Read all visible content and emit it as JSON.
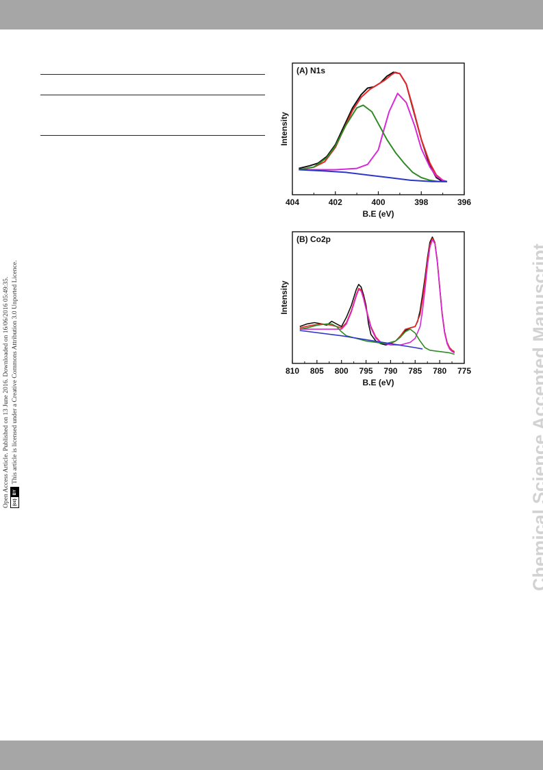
{
  "header": {},
  "footer": {},
  "side_meta": {
    "line1": "Open Access Article. Published on 13 June 2016. Downloaded on 16/06/2016 05:49:35.",
    "line2": "This article is licensed under a Creative Commons Attribution 3.0 Unported Licence.",
    "badge_cc": "(cc)",
    "badge_by": "BY"
  },
  "watermark": "Chemical Science Accepted Manuscript",
  "colors": {
    "band": "#a6a6a6",
    "experimental": "#111111",
    "fit": "#e8262a",
    "component_1": "#d827d8",
    "component_2": "#2e8b24",
    "background": "#2b36c8"
  },
  "chart_data": [
    {
      "type": "line",
      "title": "(A) N1s",
      "xlabel": "B.E (eV)",
      "ylabel": "Intensity",
      "xlim": [
        404,
        396
      ],
      "ylim": [
        0,
        1.0
      ],
      "x_reversed": true,
      "x_ticks": [
        404,
        402,
        400,
        398,
        396
      ],
      "x_tick_labels": [
        "404",
        "402",
        "400",
        "398",
        "396"
      ],
      "y_ticks_shown": false,
      "series": [
        {
          "role": "experimental",
          "color": "#111111",
          "x": [
            403.7,
            403.2,
            402.8,
            402.4,
            402.0,
            401.6,
            401.2,
            400.8,
            400.5,
            400.2,
            399.9,
            399.6,
            399.3,
            399.0,
            398.7,
            398.4,
            398.0,
            397.6,
            397.3,
            397.0,
            396.8
          ],
          "y": [
            0.2,
            0.22,
            0.24,
            0.29,
            0.38,
            0.52,
            0.66,
            0.76,
            0.81,
            0.82,
            0.85,
            0.9,
            0.93,
            0.92,
            0.84,
            0.66,
            0.42,
            0.22,
            0.13,
            0.1,
            0.1
          ]
        },
        {
          "role": "fit",
          "color": "#e8262a",
          "x": [
            403.7,
            403.0,
            402.5,
            402.0,
            401.6,
            401.2,
            400.8,
            400.4,
            400.0,
            399.7,
            399.4,
            399.2,
            399.0,
            398.7,
            398.4,
            398.0,
            397.6,
            397.3,
            397.0,
            396.8
          ],
          "y": [
            0.19,
            0.21,
            0.25,
            0.36,
            0.5,
            0.64,
            0.74,
            0.8,
            0.84,
            0.87,
            0.91,
            0.93,
            0.92,
            0.84,
            0.67,
            0.42,
            0.24,
            0.15,
            0.11,
            0.1
          ]
        },
        {
          "role": "component",
          "color": "#d827d8",
          "x": [
            403.7,
            402.0,
            401.0,
            400.5,
            400.0,
            399.8,
            399.5,
            399.1,
            398.7,
            398.3,
            398.0,
            397.6,
            397.3,
            397.0,
            396.8
          ],
          "y": [
            0.19,
            0.19,
            0.2,
            0.23,
            0.34,
            0.46,
            0.63,
            0.77,
            0.7,
            0.52,
            0.35,
            0.21,
            0.14,
            0.11,
            0.1
          ]
        },
        {
          "role": "component",
          "color": "#2e8b24",
          "x": [
            403.7,
            403.0,
            402.4,
            402.0,
            401.5,
            401.0,
            400.7,
            400.3,
            400.0,
            399.6,
            399.2,
            398.8,
            398.4,
            398.0,
            397.6,
            397.2,
            396.8
          ],
          "y": [
            0.19,
            0.21,
            0.28,
            0.37,
            0.53,
            0.66,
            0.68,
            0.63,
            0.54,
            0.42,
            0.32,
            0.24,
            0.17,
            0.13,
            0.11,
            0.1,
            0.1
          ]
        },
        {
          "role": "background",
          "color": "#2b36c8",
          "x": [
            403.7,
            402.5,
            401.5,
            400.5,
            399.5,
            398.5,
            397.5,
            396.8
          ],
          "y": [
            0.19,
            0.18,
            0.17,
            0.15,
            0.13,
            0.11,
            0.1,
            0.1
          ]
        }
      ]
    },
    {
      "type": "line",
      "title": "(B) Co2p",
      "xlabel": "B.E (eV)",
      "ylabel": "Intensity",
      "xlim": [
        810,
        775
      ],
      "ylim": [
        0,
        1.0
      ],
      "x_reversed": true,
      "x_ticks": [
        810,
        805,
        800,
        795,
        790,
        785,
        780,
        775
      ],
      "x_tick_labels": [
        "810",
        "805",
        "800",
        "795",
        "790",
        "785",
        "780",
        "775"
      ],
      "y_ticks_shown": false,
      "series": [
        {
          "role": "experimental",
          "color": "#111111",
          "x": [
            808.5,
            807,
            805.5,
            804,
            803,
            802,
            801,
            800,
            799,
            798,
            797,
            796.5,
            796,
            795.5,
            795,
            794.5,
            794,
            793,
            792,
            791,
            790,
            789,
            788,
            787,
            786,
            785,
            784.5,
            784,
            783.5,
            783,
            782.5,
            782,
            781.5,
            781,
            780.5,
            780,
            779.5,
            779,
            778.5,
            778,
            777.5,
            777
          ],
          "y": [
            0.28,
            0.3,
            0.31,
            0.3,
            0.29,
            0.32,
            0.3,
            0.28,
            0.35,
            0.44,
            0.56,
            0.6,
            0.58,
            0.52,
            0.44,
            0.3,
            0.22,
            0.17,
            0.15,
            0.14,
            0.15,
            0.17,
            0.2,
            0.25,
            0.27,
            0.28,
            0.32,
            0.4,
            0.52,
            0.65,
            0.8,
            0.92,
            0.96,
            0.92,
            0.78,
            0.58,
            0.38,
            0.24,
            0.16,
            0.12,
            0.1,
            0.08
          ]
        },
        {
          "role": "fit",
          "color": "#e8262a",
          "x": [
            808.5,
            806,
            804,
            802,
            800,
            799,
            798,
            797,
            796.5,
            796,
            795.5,
            795,
            794,
            793,
            792,
            791,
            790,
            789,
            788,
            787,
            786,
            785,
            784,
            783.5,
            783,
            782.5,
            782,
            781.5,
            781,
            780.5,
            780,
            779.5,
            779,
            778.5,
            778,
            777.5,
            777
          ],
          "y": [
            0.27,
            0.29,
            0.3,
            0.29,
            0.27,
            0.31,
            0.4,
            0.52,
            0.57,
            0.56,
            0.5,
            0.42,
            0.28,
            0.2,
            0.16,
            0.15,
            0.15,
            0.17,
            0.21,
            0.26,
            0.27,
            0.28,
            0.37,
            0.48,
            0.62,
            0.78,
            0.9,
            0.95,
            0.92,
            0.78,
            0.58,
            0.38,
            0.24,
            0.16,
            0.12,
            0.1,
            0.09
          ]
        },
        {
          "role": "component",
          "color": "#d827d8",
          "x": [
            808.5,
            800,
            799,
            798,
            797,
            796.5,
            796,
            795.5,
            795,
            794,
            793,
            792,
            791,
            790,
            789,
            788,
            787,
            786,
            785,
            784,
            783.5,
            783,
            782.5,
            782,
            781.5,
            781,
            780.5,
            780,
            779.5,
            779,
            778.5,
            778,
            777.5,
            777
          ],
          "y": [
            0.26,
            0.26,
            0.3,
            0.39,
            0.51,
            0.56,
            0.55,
            0.49,
            0.41,
            0.27,
            0.19,
            0.16,
            0.15,
            0.14,
            0.14,
            0.14,
            0.15,
            0.16,
            0.19,
            0.28,
            0.4,
            0.56,
            0.74,
            0.88,
            0.94,
            0.91,
            0.77,
            0.57,
            0.37,
            0.23,
            0.15,
            0.11,
            0.09,
            0.08
          ]
        },
        {
          "role": "component",
          "color": "#2e8b24",
          "x": [
            808.5,
            807,
            805,
            803,
            802,
            801,
            800,
            799,
            798,
            797,
            795,
            793,
            791,
            789,
            788,
            787,
            786,
            785,
            784,
            783,
            782,
            780,
            778,
            777
          ],
          "y": [
            0.26,
            0.27,
            0.29,
            0.3,
            0.3,
            0.28,
            0.24,
            0.21,
            0.2,
            0.19,
            0.17,
            0.16,
            0.15,
            0.17,
            0.2,
            0.24,
            0.26,
            0.23,
            0.17,
            0.12,
            0.1,
            0.09,
            0.08,
            0.07
          ]
        },
        {
          "role": "background",
          "color": "#2b36c8",
          "x": [
            808.5,
            800,
            795,
            790,
            785,
            783.5
          ],
          "y": [
            0.25,
            0.21,
            0.18,
            0.15,
            0.12,
            0.11
          ]
        }
      ]
    }
  ]
}
